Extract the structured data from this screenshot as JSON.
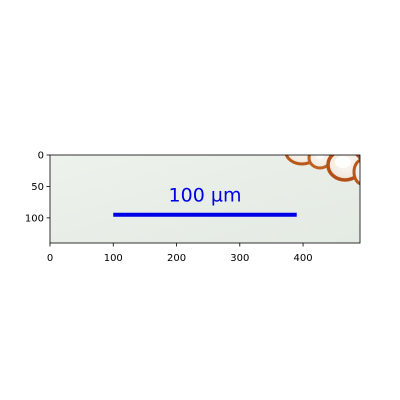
{
  "image": {
    "description_visible": "microscopy image with scale bar",
    "background_color": "#e9efe8",
    "scalebar": {
      "label": "100 µm",
      "color": "#0000e6",
      "x_start": 100,
      "x_end": 390,
      "y": 95
    },
    "cell_colors": {
      "outline": "#b8581a",
      "fill": "#f6f2ec",
      "highlight": "#ffffff"
    }
  },
  "axes": {
    "x_range": [
      0,
      490
    ],
    "y_range": [
      140,
      0
    ],
    "x_ticks": [
      0,
      100,
      200,
      300,
      400
    ],
    "x_tick_labels": [
      "0",
      "100",
      "200",
      "300",
      "400"
    ],
    "y_ticks": [
      0,
      50,
      100
    ],
    "y_tick_labels": [
      "0",
      "50",
      "100"
    ]
  }
}
